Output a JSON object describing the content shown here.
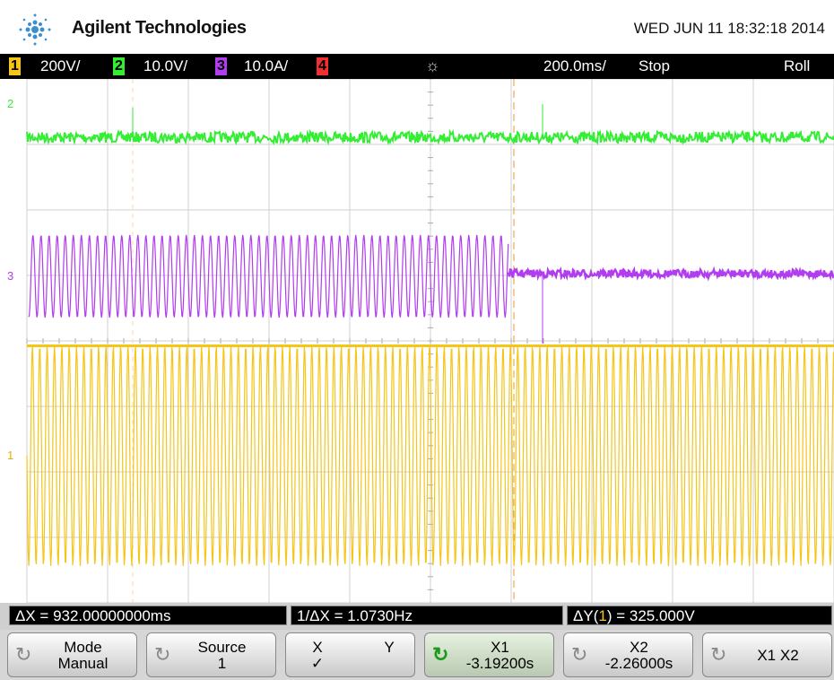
{
  "header": {
    "brand": "Agilent Technologies",
    "datetime": "WED JUN 11 18:32:18 2014"
  },
  "status_bar": {
    "channels": [
      {
        "number": "1",
        "scale": "200V/"
      },
      {
        "number": "2",
        "scale": "10.0V/"
      },
      {
        "number": "3",
        "scale": "10.0A/"
      },
      {
        "number": "4"
      }
    ],
    "timebase": "200.0ms/",
    "state": "Stop",
    "mode": "Roll"
  },
  "markers": [
    "2",
    "3",
    "1"
  ],
  "measurements": {
    "delta_x": "ΔX = 932.00000000ms",
    "inverse_delta_x": "1/ΔX = 1.0730Hz",
    "delta_y_prefix": "ΔY(",
    "delta_y_source": "1",
    "delta_y_suffix": ") = 325.000V"
  },
  "softkeys": [
    {
      "label": "Mode",
      "value": "Manual"
    },
    {
      "label": "Source",
      "value": "1"
    },
    {
      "label_x": "X",
      "label_y": "Y",
      "check": "✓"
    },
    {
      "label": "X1",
      "value": "-3.19200s"
    },
    {
      "label": "X2",
      "value": "-2.26000s"
    },
    {
      "label": "X1 X2"
    }
  ]
}
